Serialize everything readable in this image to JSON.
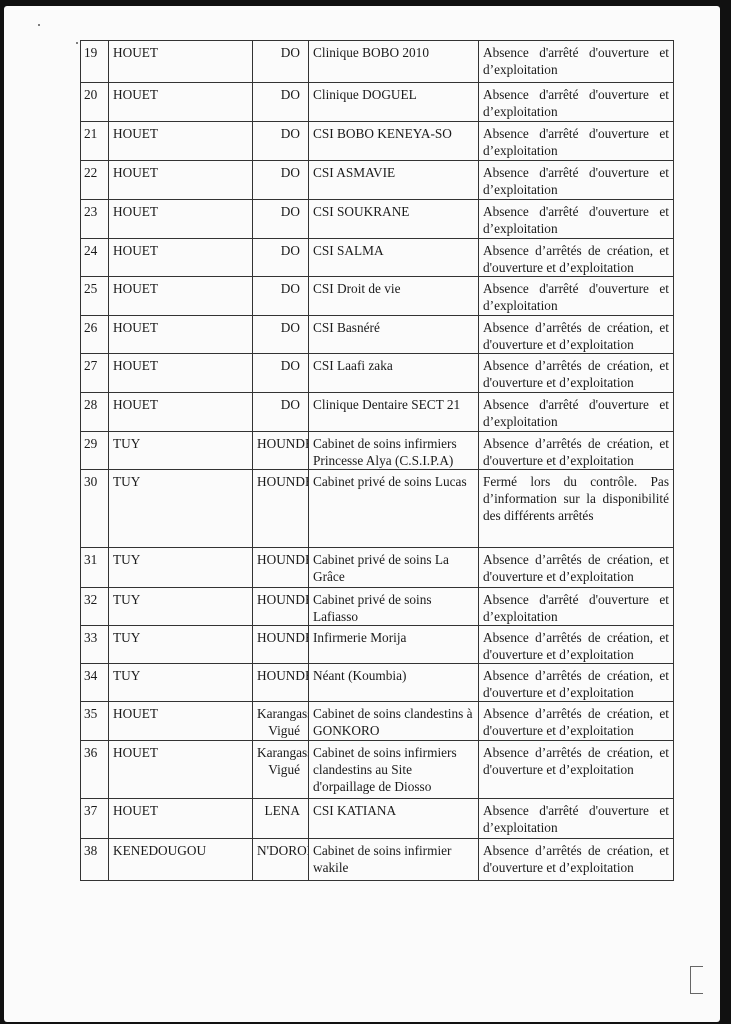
{
  "table": {
    "rows": [
      {
        "n": "19",
        "region": "HOUET",
        "district": "DO",
        "structure": "Clinique BOBO 2010",
        "observation": "Absence d'arrêté d'ouverture et d’exploitation"
      },
      {
        "n": "20",
        "region": "HOUET",
        "district": "DO",
        "structure": "Clinique DOGUEL",
        "observation": "Absence d'arrêté d'ouverture et d’exploitation"
      },
      {
        "n": "21",
        "region": "HOUET",
        "district": "DO",
        "structure": "CSI BOBO KENEYA-SO",
        "observation": "Absence d'arrêté d'ouverture et d’exploitation"
      },
      {
        "n": "22",
        "region": "HOUET",
        "district": "DO",
        "structure": "CSI ASMAVIE",
        "observation": "Absence d'arrêté d'ouverture et d’exploitation"
      },
      {
        "n": "23",
        "region": "HOUET",
        "district": "DO",
        "structure": "CSI SOUKRANE",
        "observation": "Absence d'arrêté d'ouverture et d’exploitation"
      },
      {
        "n": "24",
        "region": "HOUET",
        "district": "DO",
        "structure": "CSI SALMA",
        "observation": "Absence d’arrêtés de création, et d'ouverture et d’exploitation"
      },
      {
        "n": "25",
        "region": "HOUET",
        "district": "DO",
        "structure": "CSI Droit de vie",
        "observation": "Absence d'arrêté d'ouverture et d’exploitation"
      },
      {
        "n": "26",
        "region": "HOUET",
        "district": "DO",
        "structure": "CSI Basnéré",
        "observation": "Absence d’arrêtés de création, et d'ouverture et d’exploitation"
      },
      {
        "n": "27",
        "region": "HOUET",
        "district": "DO",
        "structure": "CSI Laafi zaka",
        "observation": "Absence d’arrêtés de création, et d'ouverture et d’exploitation"
      },
      {
        "n": "28",
        "region": "HOUET",
        "district": "DO",
        "structure": "Clinique Dentaire SECT 21",
        "observation": "Absence d'arrêté d'ouverture et d’exploitation"
      },
      {
        "n": "29",
        "region": "TUY",
        "district": "HOUNDE",
        "structure": "Cabinet de soins infirmiers Princesse Alya (C.S.I.P.A)",
        "observation": "Absence d’arrêtés de création, et d'ouverture et d’exploitation"
      },
      {
        "n": "30",
        "region": "TUY",
        "district": "HOUNDE",
        "structure": "Cabinet privé de soins Lucas",
        "observation": "Fermé lors du contrôle. Pas d’information sur la disponibilité des différents arrêtés"
      },
      {
        "n": "31",
        "region": "TUY",
        "district": "HOUNDE",
        "structure": "Cabinet privé de soins La Grâce",
        "observation": "Absence d’arrêtés de création, et d'ouverture et d’exploitation"
      },
      {
        "n": "32",
        "region": "TUY",
        "district": "HOUNDE",
        "structure": "Cabinet privé de soins Lafiasso",
        "observation": "Absence d'arrêté d'ouverture et d’exploitation"
      },
      {
        "n": "33",
        "region": "TUY",
        "district": "HOUNDE",
        "structure": "Infirmerie Morija",
        "observation": "Absence d’arrêtés de création, et d'ouverture et d’exploitation"
      },
      {
        "n": "34",
        "region": "TUY",
        "district": "HOUNDE",
        "structure": "Néant (Koumbia)",
        "observation": "Absence d’arrêtés de création, et d'ouverture et d’exploitation"
      },
      {
        "n": "35",
        "region": "HOUET",
        "district": "Karangasso-Vigué",
        "structure": "Cabinet de soins clandestins à GONKORO",
        "observation": "Absence d’arrêtés de création, et d'ouverture et d’exploitation"
      },
      {
        "n": "36",
        "region": "HOUET",
        "district": "Karangasso-Vigué",
        "structure": "Cabinet de soins infirmiers clandestins au Site d'orpaillage de Diosso",
        "observation": "Absence d’arrêtés de création, et d'ouverture et d’exploitation"
      },
      {
        "n": "37",
        "region": "HOUET",
        "district": "LENA",
        "structure": "CSI KATIANA",
        "observation": "Absence d'arrêté d'ouverture et d’exploitation"
      },
      {
        "n": "38",
        "region": "KENEDOUGOU",
        "district": "N'DOROLA",
        "structure": "Cabinet de soins infirmier wakile",
        "observation": "Absence d’arrêtés de création, et d'ouverture et d’exploitation"
      }
    ]
  }
}
